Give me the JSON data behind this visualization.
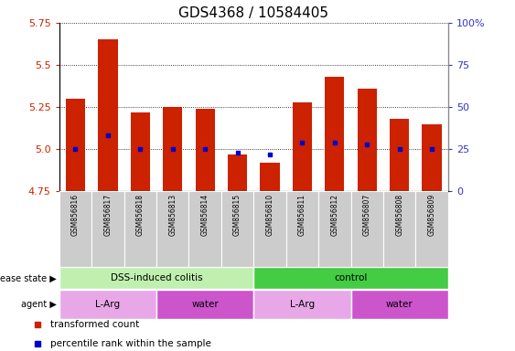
{
  "title": "GDS4368 / 10584405",
  "samples": [
    "GSM856816",
    "GSM856817",
    "GSM856818",
    "GSM856813",
    "GSM856814",
    "GSM856815",
    "GSM856810",
    "GSM856811",
    "GSM856812",
    "GSM856807",
    "GSM856808",
    "GSM856809"
  ],
  "transformed_count": [
    5.3,
    5.65,
    5.22,
    5.25,
    5.24,
    4.97,
    4.92,
    5.28,
    5.43,
    5.36,
    5.18,
    5.15
  ],
  "percentile_rank": [
    25,
    33,
    25,
    25,
    25,
    23,
    22,
    29,
    29,
    28,
    25,
    25
  ],
  "ymin": 4.75,
  "ymax": 5.75,
  "yticks": [
    4.75,
    5.0,
    5.25,
    5.5,
    5.75
  ],
  "y2min": 0,
  "y2max": 100,
  "y2ticks": [
    0,
    25,
    50,
    75,
    100
  ],
  "bar_color": "#cc2200",
  "marker_color": "#0000cc",
  "disease_state_groups": [
    {
      "label": "DSS-induced colitis",
      "start": 0,
      "end": 6,
      "color": "#c0f0b0"
    },
    {
      "label": "control",
      "start": 6,
      "end": 12,
      "color": "#44cc44"
    }
  ],
  "agent_groups": [
    {
      "label": "L-Arg",
      "start": 0,
      "end": 3,
      "color": "#e8a8e8"
    },
    {
      "label": "water",
      "start": 3,
      "end": 6,
      "color": "#cc55cc"
    },
    {
      "label": "L-Arg",
      "start": 6,
      "end": 9,
      "color": "#e8a8e8"
    },
    {
      "label": "water",
      "start": 9,
      "end": 12,
      "color": "#cc55cc"
    }
  ],
  "legend_bar_label": "transformed count",
  "legend_marker_label": "percentile rank within the sample",
  "title_fontsize": 11,
  "left_tick_color": "#cc2200",
  "right_tick_color": "#3333cc",
  "xtick_bg_color": "#cccccc",
  "left_label": "disease state",
  "right_label": "agent"
}
